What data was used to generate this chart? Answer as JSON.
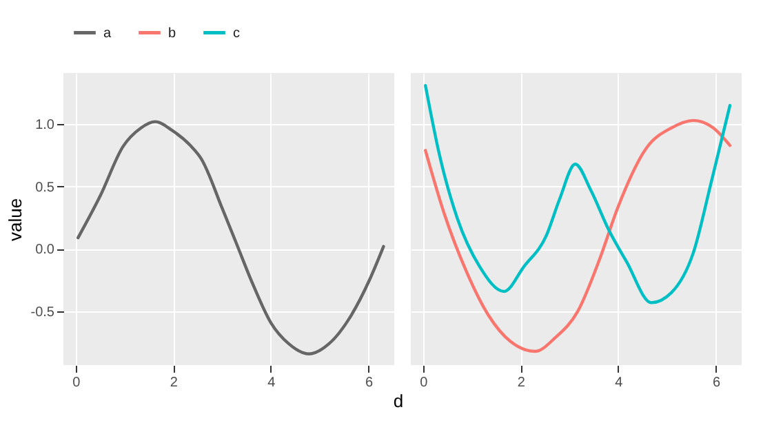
{
  "chart_data": [
    {
      "type": "line",
      "xlabel": "d",
      "ylabel": "value",
      "xlim": [
        -0.25,
        6.53
      ],
      "ylim": [
        -0.93,
        1.41
      ],
      "xticks": [
        0,
        2,
        4,
        6
      ],
      "yticks": [
        {
          "value": -0.5,
          "label": "-0.5"
        },
        {
          "value": 0,
          "label": "0.0"
        },
        {
          "value": 0.5,
          "label": "0.5"
        },
        {
          "value": 1,
          "label": "1.0"
        }
      ],
      "grid": true,
      "legend": "top",
      "line_style": "solid",
      "series": [
        {
          "name": "a",
          "color": "#666666",
          "x": [
            0.05,
            0.51,
            0.97,
            1.34,
            1.63,
            1.98,
            2.35,
            2.58,
            3.0,
            3.3,
            3.63,
            4.0,
            4.37,
            4.78,
            5.19,
            5.65,
            6.02,
            6.31
          ],
          "values": [
            0.09,
            0.43,
            0.82,
            0.97,
            1.02,
            0.95,
            0.83,
            0.72,
            0.33,
            0.04,
            -0.28,
            -0.59,
            -0.76,
            -0.84,
            -0.76,
            -0.53,
            -0.25,
            0.02
          ]
        }
      ]
    },
    {
      "type": "line",
      "xlim": [
        -0.25,
        6.53
      ],
      "ylim": [
        -0.93,
        1.41
      ],
      "xticks": [
        0,
        2,
        4,
        6
      ],
      "yticks": [
        -0.5,
        0,
        0.5,
        1
      ],
      "tick_labels": "x",
      "grid": true,
      "legend": "top",
      "line_style": "solid",
      "series": [
        {
          "name": "b",
          "color": "#f8766d",
          "x": [
            0.05,
            0.43,
            0.89,
            1.34,
            1.79,
            2.3,
            2.71,
            3.17,
            3.63,
            3.99,
            4.58,
            5.09,
            5.54,
            5.95,
            6.29
          ],
          "values": [
            0.79,
            0.29,
            -0.18,
            -0.53,
            -0.74,
            -0.82,
            -0.71,
            -0.5,
            -0.07,
            0.33,
            0.81,
            0.97,
            1.03,
            0.97,
            0.83
          ]
        },
        {
          "name": "c",
          "color": "#00bfc4",
          "x": [
            0.05,
            0.34,
            0.7,
            1.16,
            1.66,
            2.07,
            2.53,
            2.8,
            3.12,
            3.44,
            3.81,
            4.17,
            4.68,
            5.09,
            5.54,
            5.91,
            6.29
          ],
          "values": [
            1.31,
            0.75,
            0.25,
            -0.14,
            -0.34,
            -0.14,
            0.11,
            0.4,
            0.68,
            0.47,
            0.15,
            -0.1,
            -0.43,
            -0.35,
            -0.03,
            0.54,
            1.15
          ]
        }
      ]
    }
  ]
}
